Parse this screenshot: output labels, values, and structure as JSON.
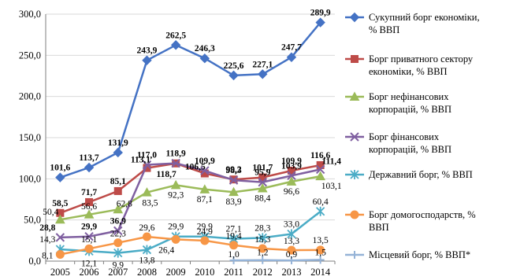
{
  "chart_data": {
    "type": "line",
    "title": "",
    "xlabel": "",
    "ylabel": "",
    "x": [
      "2005",
      "2006",
      "2007",
      "2008",
      "2009",
      "2010",
      "2011",
      "2012",
      "2013",
      "2014"
    ],
    "ylim": [
      0,
      300
    ],
    "yticks": [
      0,
      50,
      100,
      150,
      200,
      250,
      300
    ],
    "ytick_labels": [
      "0,0",
      "50,0",
      "100,0",
      "150,0",
      "200,0",
      "250,0",
      "300,0"
    ],
    "grid": "horizontal",
    "legend_position": "right",
    "series": [
      {
        "name": "Сукупний борг економіки, % ВВП",
        "legend_lines": [
          "Сукупний борг економіки,",
          "% ВВП"
        ],
        "color": "#4472c4",
        "marker": "diamond",
        "values": [
          101.6,
          113.7,
          131.9,
          243.9,
          262.5,
          246.3,
          225.6,
          227.1,
          247.7,
          289.9
        ],
        "labels": [
          "101,6",
          "113,7",
          "131,9",
          "243,9",
          "262,5",
          "246,3",
          "225,6",
          "227,1",
          "247,7",
          "289,9"
        ]
      },
      {
        "name": "Борг приватного сектору економіки, % ВВП",
        "legend_lines": [
          "Борг приватного сектору",
          "економіки, % ВВП"
        ],
        "color": "#be4b48",
        "marker": "square",
        "values": [
          58.5,
          71.7,
          85.1,
          113.1,
          118.7,
          106.5,
          99.2,
          101.7,
          109.9,
          116.6
        ],
        "labels": [
          "58,5",
          "71,7",
          "85,1",
          "113,1",
          "118,7",
          "106,5",
          "99,2",
          "101,7",
          "109,9",
          "116,6"
        ]
      },
      {
        "name": "Борг нефінансових корпорацій, % ВВП",
        "legend_lines": [
          "Борг нефінансових",
          "корпорацій, % ВВП"
        ],
        "color": "#9bbb59",
        "marker": "triangle",
        "values": [
          50.4,
          56.6,
          62.8,
          83.5,
          92.3,
          87.1,
          83.9,
          88.4,
          96.6,
          103.1
        ],
        "labels": [
          "50,4",
          "56,6",
          "62,8",
          "83,5",
          "92,3",
          "87,1",
          "83,9",
          "88,4",
          "96,6",
          "103,1"
        ]
      },
      {
        "name": "Борг фінансових корпорацій, % ВВП",
        "legend_lines": [
          "Борг фінансових",
          "корпорацій, % ВВП"
        ],
        "color": "#7f5fa0",
        "marker": "x",
        "values": [
          28.8,
          29.9,
          36.9,
          117.0,
          118.9,
          109.9,
          98.3,
          95.9,
          103.9,
          111.4
        ],
        "labels": [
          "28,8",
          "29,9",
          "36,9",
          "117,0",
          "118,9",
          "109,9",
          "98,3",
          "95,9",
          "103,9",
          "111,4"
        ]
      },
      {
        "name": "Державний борг, % ВВП",
        "legend_lines": [
          "Державний борг, % ВВП"
        ],
        "color": "#4bacc6",
        "marker": "star",
        "values": [
          14.3,
          12.1,
          9.9,
          13.8,
          29.9,
          29.9,
          27.1,
          28.3,
          33.0,
          60.4
        ],
        "labels": [
          "14,3",
          "12,1",
          "9,9",
          "13,8",
          "29,9",
          "29,9",
          "27,1",
          "28,3",
          "33,0",
          "60,4"
        ]
      },
      {
        "name": "Борг домогосподарств, % ВВП",
        "legend_lines": [
          "Борг домогосподарств, %",
          "ВВП"
        ],
        "color": "#f79646",
        "marker": "circle",
        "values": [
          8.1,
          15.1,
          22.3,
          29.6,
          26.4,
          24.9,
          19.4,
          15.3,
          13.3,
          13.5
        ],
        "labels": [
          "8,1",
          "15,1",
          "22,3",
          "29,6",
          "26,4",
          "24,9",
          "19,4",
          "15,3",
          "13,3",
          "13,5"
        ]
      },
      {
        "name": "Місцевий борг, % ВВП*",
        "legend_lines": [
          "Місцевий борг, % ВВП*"
        ],
        "color": "#95b3d7",
        "marker": "plus",
        "x_start": 6,
        "values": [
          null,
          null,
          null,
          null,
          null,
          null,
          1.0,
          1.2,
          0.9,
          1.5
        ],
        "labels": [
          "",
          "",
          "",
          "",
          "",
          "",
          "1,0",
          "1,2",
          "0,9",
          "1,5"
        ]
      }
    ]
  }
}
